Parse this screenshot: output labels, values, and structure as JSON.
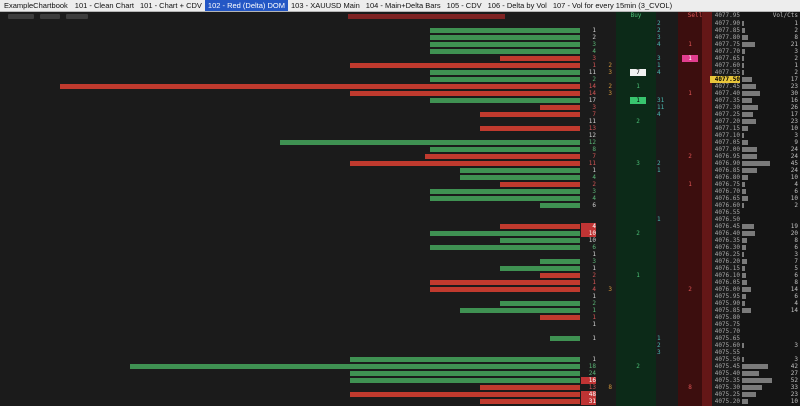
{
  "tabbar": {
    "chartbook": "ExampleChartbook",
    "tabs": [
      {
        "label": "101 - Clean Chart",
        "active": false
      },
      {
        "label": "101 - Chart + CDV",
        "active": false
      },
      {
        "label": "102 - Red (Delta) DOM",
        "active": true
      },
      {
        "label": "103 - XAUUSD Main",
        "active": false
      },
      {
        "label": "104 - Main+Delta Bars",
        "active": false
      },
      {
        "label": "105 - CDV",
        "active": false
      },
      {
        "label": "106 - Delta by Vol",
        "active": false
      },
      {
        "label": "107 -  Vol for every 15min (3_CVOL)",
        "active": false
      }
    ]
  },
  "dom": {
    "headers": {
      "buy": "Buy",
      "sell": "Sell",
      "vol": "Vol/Cts",
      "top_price": "4077.95"
    },
    "colors": {
      "tab_active_bg": "#2457c5",
      "bar_green": "#3f9152",
      "bar_red": "#c03a2e",
      "buy_strip_bg": "#0c2a18",
      "sell_strip_bg": "#3c0e0e",
      "buy_text": "#4cc076",
      "sell_text": "#e05555",
      "mid_text": "#49b8b0",
      "price_text": "#a8a8a8",
      "vol_bar": "#7a7a7a",
      "vol_text": "#c4c4c4",
      "hl_yellow": "#e9c63b",
      "hl_pink": "#e23e8e",
      "hl_green": "#38c46e",
      "hl_white": "#f2f2f2",
      "hl_red_bg": "#c03434",
      "txt_white": "#d0d0d0",
      "txt_green": "#5cb878",
      "txt_red": "#d35555",
      "txt_orange": "#d69a3c"
    },
    "rows": [
      {
        "p": "4077.90",
        "m": "2",
        "v": "1",
        "vl": 2
      },
      {
        "p": "4077.85",
        "bl": 150,
        "bc": "g",
        "a": "1",
        "ac": "w",
        "m": "2",
        "v": "2",
        "vl": 3
      },
      {
        "p": "4077.80",
        "bl": 150,
        "bc": "g",
        "a": "2",
        "ac": "w",
        "m": "3",
        "v": "8",
        "vl": 6
      },
      {
        "p": "4077.75",
        "bl": 150,
        "bc": "g",
        "a": "3",
        "ac": "g",
        "m": "4",
        "s": "1",
        "v": "21",
        "vl": 13
      },
      {
        "p": "4077.70",
        "bl": 150,
        "bc": "g",
        "a": "4",
        "ac": "g",
        "v": "3",
        "vl": 3
      },
      {
        "p": "4077.65",
        "bl": 80,
        "bc": "r",
        "a": "3",
        "ac": "r",
        "m": "3",
        "s": "1",
        "sh": "p",
        "v": "2",
        "vl": 2
      },
      {
        "p": "4077.60",
        "bl": 230,
        "bc": "r",
        "a": "1",
        "ac": "r",
        "b": "2",
        "m": "1",
        "v": "1",
        "vl": 2
      },
      {
        "p": "4077.55",
        "bl": 150,
        "bc": "g",
        "a": "11",
        "ac": "w",
        "b": "3",
        "by": "7",
        "byh": "w",
        "m": "4",
        "v": "2",
        "vl": 2
      },
      {
        "p": "4077.50",
        "bl": 150,
        "bc": "g",
        "a": "2",
        "ac": "g",
        "ph": "y",
        "v": "17",
        "vl": 10
      },
      {
        "p": "4077.45",
        "bl": 520,
        "bc": "r",
        "a": "14",
        "ac": "r",
        "b": "2",
        "by": "1",
        "v": "23",
        "vl": 14
      },
      {
        "p": "4077.40",
        "bl": 230,
        "bc": "r",
        "a": "14",
        "ac": "r",
        "b": "3",
        "s": "1",
        "v": "30",
        "vl": 18
      },
      {
        "p": "4077.35",
        "bl": 150,
        "bc": "g",
        "a": "17",
        "ac": "w",
        "by": "1",
        "byh": "g",
        "m": "31",
        "v": "16",
        "vl": 10
      },
      {
        "p": "4077.30",
        "bl": 40,
        "bc": "r",
        "a": "3",
        "ac": "r",
        "m": "11",
        "v": "26",
        "vl": 16
      },
      {
        "p": "4077.25",
        "bl": 100,
        "bc": "r",
        "a": "7",
        "ac": "r",
        "m": "4",
        "v": "17",
        "vl": 11
      },
      {
        "p": "4077.20",
        "a": "11",
        "ac": "w",
        "by": "2",
        "v": "23",
        "vl": 14
      },
      {
        "p": "4077.15",
        "bl": 100,
        "bc": "r",
        "a": "13",
        "ac": "r",
        "v": "10",
        "vl": 6
      },
      {
        "p": "4077.10",
        "a": "12",
        "ac": "w",
        "v": "3",
        "vl": 2
      },
      {
        "p": "4077.05",
        "bl": 300,
        "bc": "g",
        "a": "12",
        "ac": "g",
        "v": "9",
        "vl": 6
      },
      {
        "p": "4077.00",
        "bl": 150,
        "bc": "g",
        "a": "8",
        "ac": "g",
        "v": "24",
        "vl": 15
      },
      {
        "p": "4076.95",
        "bl": 155,
        "bc": "r",
        "a": "7",
        "ac": "r",
        "s": "2",
        "v": "24",
        "vl": 15
      },
      {
        "p": "4076.90",
        "bl": 230,
        "bc": "r",
        "a": "11",
        "ac": "r",
        "by": "3",
        "m": "2",
        "v": "45",
        "vl": 28
      },
      {
        "p": "4076.85",
        "bl": 120,
        "bc": "g",
        "a": "1",
        "ac": "w",
        "m": "1",
        "v": "24",
        "vl": 15
      },
      {
        "p": "4076.80",
        "bl": 120,
        "bc": "g",
        "a": "4",
        "ac": "g",
        "v": "10",
        "vl": 6
      },
      {
        "p": "4076.75",
        "bl": 80,
        "bc": "r",
        "a": "2",
        "ac": "r",
        "s": "1",
        "v": "4",
        "vl": 3
      },
      {
        "p": "4076.70",
        "bl": 150,
        "bc": "g",
        "a": "3",
        "ac": "g",
        "v": "6",
        "vl": 4
      },
      {
        "p": "4076.65",
        "bl": 150,
        "bc": "g",
        "a": "4",
        "ac": "g",
        "v": "10",
        "vl": 6
      },
      {
        "p": "4076.60",
        "bl": 40,
        "bc": "g",
        "a": "6",
        "ac": "w",
        "v": "2",
        "vl": 2
      },
      {
        "p": "4076.55"
      },
      {
        "p": "4076.50",
        "m": "1"
      },
      {
        "p": "4076.45",
        "bl": 80,
        "bc": "r",
        "a": "4",
        "ac": "R",
        "v": "19",
        "vl": 12
      },
      {
        "p": "4076.40",
        "bl": 150,
        "bc": "g",
        "a": "10",
        "ac": "R",
        "by": "2",
        "v": "20",
        "vl": 13
      },
      {
        "p": "4076.35",
        "bl": 80,
        "bc": "g",
        "a": "10",
        "ac": "w",
        "v": "8",
        "vl": 5
      },
      {
        "p": "4076.30",
        "bl": 150,
        "bc": "g",
        "a": "6",
        "ac": "g",
        "v": "6",
        "vl": 4
      },
      {
        "p": "4076.25",
        "a": "1",
        "ac": "w",
        "v": "3",
        "vl": 2
      },
      {
        "p": "4076.20",
        "bl": 40,
        "bc": "g",
        "a": "3",
        "ac": "g",
        "v": "7",
        "vl": 5
      },
      {
        "p": "4076.15",
        "bl": 80,
        "bc": "g",
        "a": "1",
        "ac": "w",
        "v": "5",
        "vl": 3
      },
      {
        "p": "4076.10",
        "bl": 40,
        "bc": "r",
        "a": "2",
        "ac": "r",
        "by": "1",
        "v": "6",
        "vl": 4
      },
      {
        "p": "4076.05",
        "bl": 150,
        "bc": "r",
        "a": "1",
        "ac": "r",
        "v": "8",
        "vl": 5
      },
      {
        "p": "4076.00",
        "bl": 150,
        "bc": "r",
        "a": "4",
        "ac": "r",
        "b": "3",
        "s": "2",
        "v": "14",
        "vl": 9
      },
      {
        "p": "4075.95",
        "a": "1",
        "ac": "w",
        "v": "6",
        "vl": 4
      },
      {
        "p": "4075.90",
        "bl": 80,
        "bc": "g",
        "a": "2",
        "ac": "g",
        "v": "4",
        "vl": 3
      },
      {
        "p": "4075.85",
        "bl": 120,
        "bc": "g",
        "a": "1",
        "ac": "g",
        "v": "14",
        "vl": 9
      },
      {
        "p": "4075.80",
        "bl": 40,
        "bc": "r",
        "a": "1",
        "ac": "r"
      },
      {
        "p": "4075.75",
        "a": "1",
        "ac": "w"
      },
      {
        "p": "4075.70"
      },
      {
        "p": "4075.65",
        "bl": 30,
        "bc": "g",
        "a": "1",
        "ac": "w",
        "m": "1"
      },
      {
        "p": "4075.60",
        "m": "2",
        "v": "3",
        "vl": 2
      },
      {
        "p": "4075.55",
        "m": "3"
      },
      {
        "p": "4075.50",
        "bl": 230,
        "bc": "g",
        "a": "1",
        "ac": "w",
        "v": "3",
        "vl": 2
      },
      {
        "p": "4075.45",
        "bl": 450,
        "bc": "g",
        "a": "18",
        "ac": "g",
        "by": "2",
        "v": "42",
        "vl": 26
      },
      {
        "p": "4075.40",
        "bl": 230,
        "bc": "g",
        "a": "24",
        "ac": "g",
        "v": "27",
        "vl": 17
      },
      {
        "p": "4075.35",
        "bl": 230,
        "bc": "g",
        "a": "16",
        "ac": "R",
        "v": "52",
        "vl": 30
      },
      {
        "p": "4075.30",
        "bl": 100,
        "bc": "r",
        "a": "13",
        "ac": "r",
        "b": "8",
        "s": "8",
        "v": "33",
        "vl": 20
      },
      {
        "p": "4075.25",
        "bl": 230,
        "bc": "r",
        "a": "48",
        "ac": "R",
        "v": "23",
        "vl": 14
      },
      {
        "p": "4075.20",
        "bl": 100,
        "bc": "r",
        "a": "31",
        "ac": "R",
        "v": "10",
        "vl": 6
      }
    ]
  }
}
